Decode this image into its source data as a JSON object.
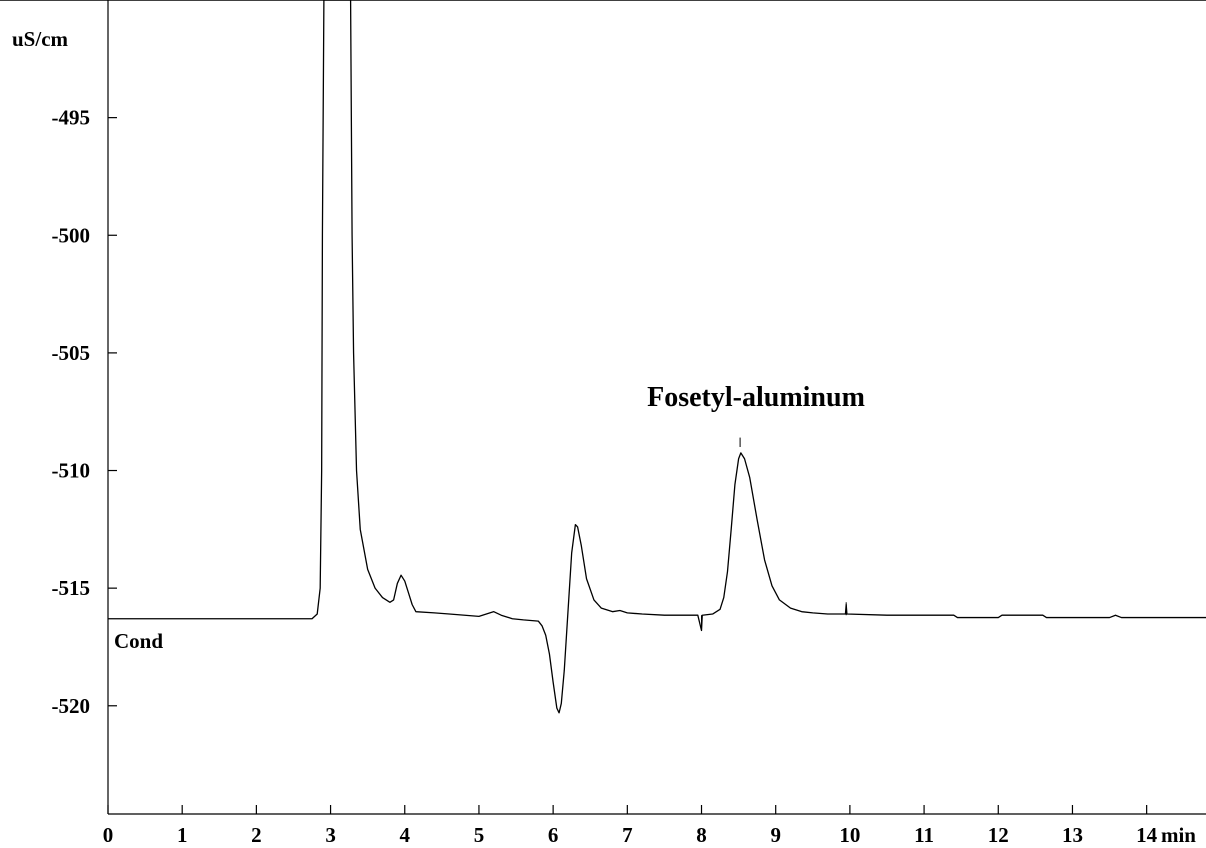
{
  "chart_data": {
    "type": "line",
    "ylabel": "uS/cm",
    "xunit": "min",
    "trace_label": "Cond",
    "annotation": {
      "text": "Fosetyl-aluminum",
      "x": 8.52,
      "y": -508.0
    },
    "xlim": [
      0,
      14.8
    ],
    "ylim": [
      -524.6,
      -490.0
    ],
    "x_ticks": [
      0,
      1,
      2,
      3,
      4,
      5,
      6,
      7,
      8,
      9,
      10,
      11,
      12,
      13,
      14
    ],
    "x_tick_labels": [
      "0",
      "1",
      "2",
      "3",
      "4",
      "5",
      "6",
      "7",
      "8",
      "9",
      "10",
      "11",
      "12",
      "13",
      "14"
    ],
    "y_ticks": [
      -495,
      -500,
      -505,
      -510,
      -515,
      -520
    ],
    "y_tick_labels": [
      "-495",
      "-500",
      "-505",
      "-510",
      "-515",
      "-520"
    ],
    "grid": false,
    "series": [
      {
        "color": "#000000",
        "points": [
          [
            0.0,
            -516.3
          ],
          [
            2.75,
            -516.3
          ],
          [
            2.82,
            -516.1
          ],
          [
            2.86,
            -515.0
          ],
          [
            2.88,
            -510.0
          ],
          [
            2.89,
            -500.0
          ],
          [
            2.91,
            -490.0
          ],
          [
            3.27,
            -490.0
          ],
          [
            3.29,
            -500.0
          ],
          [
            3.31,
            -505.0
          ],
          [
            3.35,
            -510.0
          ],
          [
            3.4,
            -512.5
          ],
          [
            3.5,
            -514.2
          ],
          [
            3.6,
            -515.0
          ],
          [
            3.7,
            -515.4
          ],
          [
            3.8,
            -515.6
          ],
          [
            3.85,
            -515.5
          ],
          [
            3.9,
            -514.8
          ],
          [
            3.95,
            -514.45
          ],
          [
            4.0,
            -514.7
          ],
          [
            4.05,
            -515.2
          ],
          [
            4.1,
            -515.7
          ],
          [
            4.15,
            -516.0
          ],
          [
            4.4,
            -516.05
          ],
          [
            4.6,
            -516.1
          ],
          [
            5.0,
            -516.2
          ],
          [
            5.1,
            -516.1
          ],
          [
            5.2,
            -516.0
          ],
          [
            5.3,
            -516.15
          ],
          [
            5.45,
            -516.3
          ],
          [
            5.6,
            -516.35
          ],
          [
            5.8,
            -516.4
          ],
          [
            5.85,
            -516.6
          ],
          [
            5.9,
            -517.0
          ],
          [
            5.95,
            -517.8
          ],
          [
            6.0,
            -519.0
          ],
          [
            6.05,
            -520.1
          ],
          [
            6.08,
            -520.3
          ],
          [
            6.11,
            -519.9
          ],
          [
            6.15,
            -518.5
          ],
          [
            6.2,
            -516.0
          ],
          [
            6.25,
            -513.5
          ],
          [
            6.3,
            -512.3
          ],
          [
            6.33,
            -512.4
          ],
          [
            6.38,
            -513.2
          ],
          [
            6.45,
            -514.6
          ],
          [
            6.55,
            -515.5
          ],
          [
            6.65,
            -515.85
          ],
          [
            6.8,
            -516.0
          ],
          [
            6.9,
            -515.95
          ],
          [
            7.0,
            -516.05
          ],
          [
            7.2,
            -516.1
          ],
          [
            7.5,
            -516.15
          ],
          [
            7.8,
            -516.15
          ],
          [
            7.95,
            -516.15
          ],
          [
            8.0,
            -516.8
          ],
          [
            8.01,
            -516.15
          ],
          [
            8.15,
            -516.1
          ],
          [
            8.25,
            -515.9
          ],
          [
            8.3,
            -515.4
          ],
          [
            8.35,
            -514.3
          ],
          [
            8.4,
            -512.5
          ],
          [
            8.45,
            -510.6
          ],
          [
            8.5,
            -509.5
          ],
          [
            8.53,
            -509.25
          ],
          [
            8.58,
            -509.5
          ],
          [
            8.65,
            -510.3
          ],
          [
            8.75,
            -512.1
          ],
          [
            8.85,
            -513.8
          ],
          [
            8.95,
            -514.9
          ],
          [
            9.05,
            -515.5
          ],
          [
            9.2,
            -515.85
          ],
          [
            9.35,
            -516.0
          ],
          [
            9.5,
            -516.05
          ],
          [
            9.7,
            -516.1
          ],
          [
            9.94,
            -516.1
          ],
          [
            9.95,
            -515.7
          ],
          [
            9.96,
            -516.1
          ],
          [
            10.5,
            -516.15
          ],
          [
            11.4,
            -516.15
          ],
          [
            11.45,
            -516.25
          ],
          [
            12.0,
            -516.25
          ],
          [
            12.05,
            -516.15
          ],
          [
            12.6,
            -516.15
          ],
          [
            12.65,
            -516.25
          ],
          [
            13.5,
            -516.25
          ],
          [
            13.58,
            -516.15
          ],
          [
            13.66,
            -516.25
          ],
          [
            14.8,
            -516.25
          ]
        ]
      }
    ],
    "markers": [
      {
        "x": 8.52,
        "y_from": -508.6,
        "y_to": -509.0
      },
      {
        "x": 9.95,
        "y_from": -515.6,
        "y_to": -516.15
      },
      {
        "x": 8.0,
        "y_from": -516.15,
        "y_to": -516.8
      }
    ]
  }
}
